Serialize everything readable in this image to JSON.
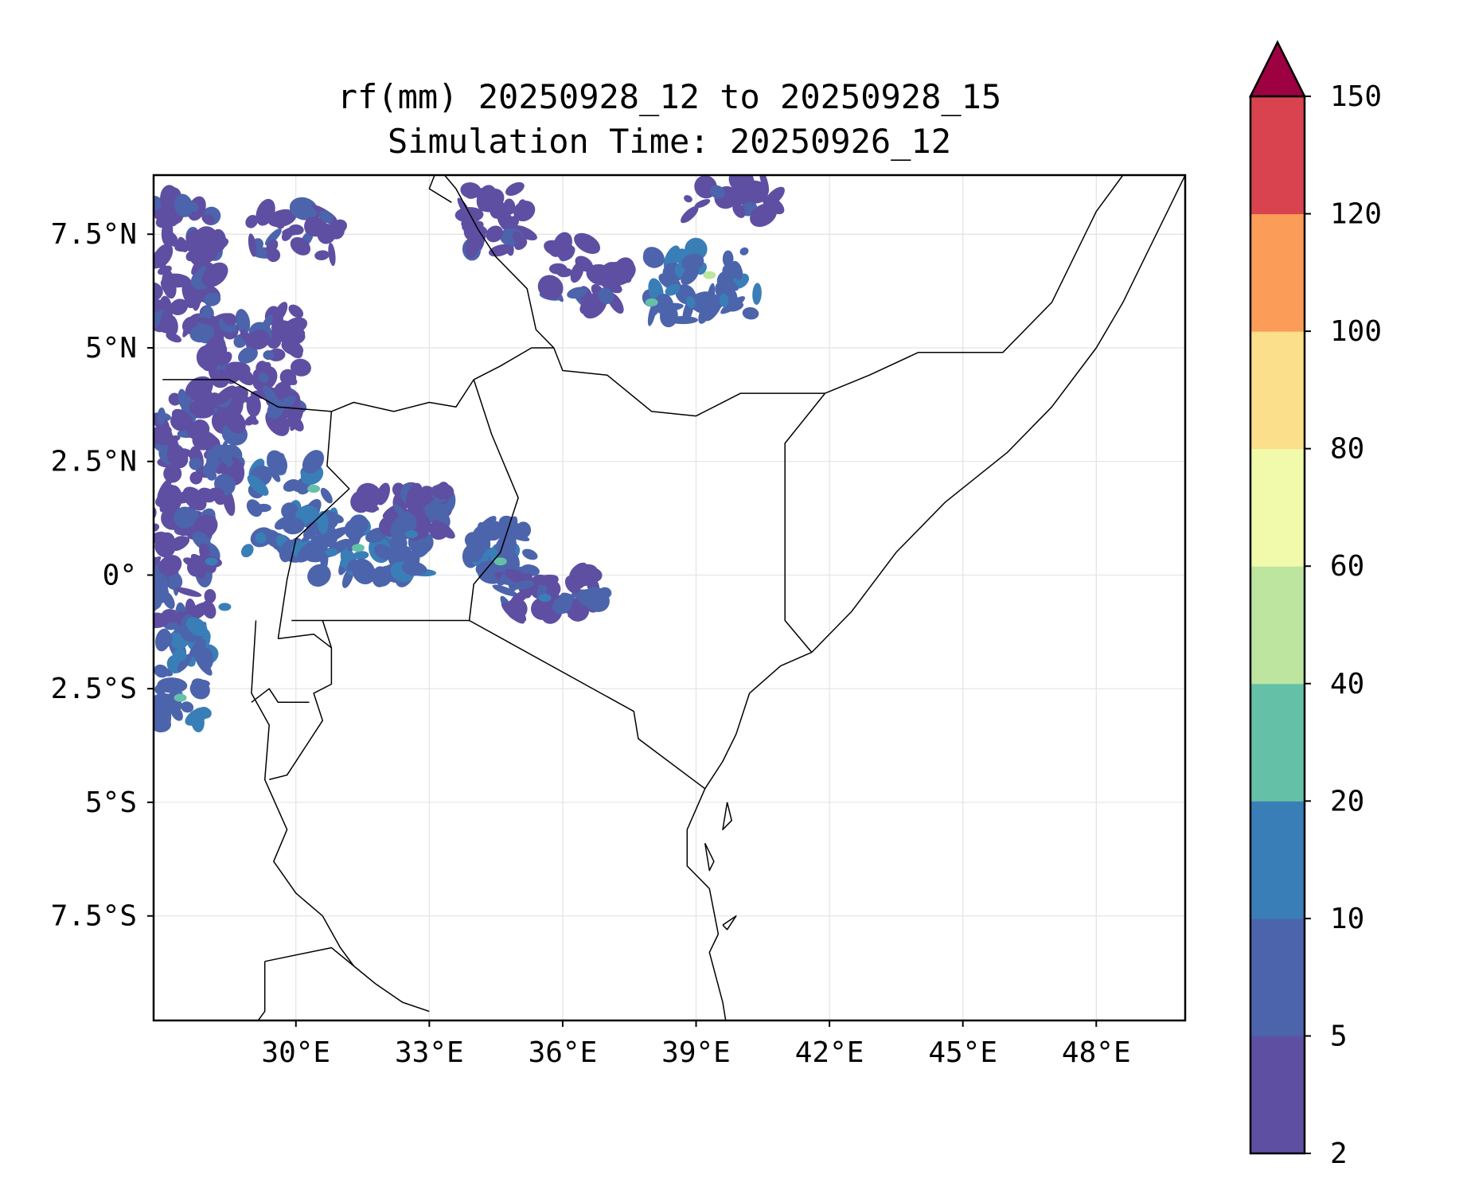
{
  "chart_data": {
    "type": "heatmap",
    "title": {
      "line1": "rf(mm) 20250928_12 to 20250928_15",
      "line2": "Simulation Time: 20250926_12"
    },
    "x_extent": [
      26.8,
      50.0
    ],
    "y_extent": [
      -9.8,
      8.8
    ],
    "x_ticks": [
      {
        "value": 30,
        "label": "30°E"
      },
      {
        "value": 33,
        "label": "33°E"
      },
      {
        "value": 36,
        "label": "36°E"
      },
      {
        "value": 39,
        "label": "39°E"
      },
      {
        "value": 42,
        "label": "42°E"
      },
      {
        "value": 45,
        "label": "45°E"
      },
      {
        "value": 48,
        "label": "48°E"
      }
    ],
    "y_ticks": [
      {
        "value": 7.5,
        "label": "7.5°N"
      },
      {
        "value": 5,
        "label": "5°N"
      },
      {
        "value": 2.5,
        "label": "2.5°N"
      },
      {
        "value": 0,
        "label": "0°"
      },
      {
        "value": -2.5,
        "label": "2.5°S"
      },
      {
        "value": -5,
        "label": "5°S"
      },
      {
        "value": -7.5,
        "label": "7.5°S"
      }
    ],
    "colorbar": {
      "extend": "max",
      "extend_color": "#9e0142",
      "levels": [
        {
          "label": "2"
        },
        {
          "label": "5"
        },
        {
          "label": "10"
        },
        {
          "label": "20"
        },
        {
          "label": "40"
        },
        {
          "label": "60"
        },
        {
          "label": "80"
        },
        {
          "label": "100"
        },
        {
          "label": "120"
        },
        {
          "label": "150"
        }
      ],
      "bins": [
        {
          "from": 2,
          "to": 5,
          "color": "#5e4fa2"
        },
        {
          "from": 5,
          "to": 10,
          "color": "#4c64ab"
        },
        {
          "from": 10,
          "to": 20,
          "color": "#3a7eb8"
        },
        {
          "from": 20,
          "to": 40,
          "color": "#65c0a8"
        },
        {
          "from": 40,
          "to": 60,
          "color": "#bde5a0"
        },
        {
          "from": 60,
          "to": 80,
          "color": "#f1f9aa"
        },
        {
          "from": 80,
          "to": 100,
          "color": "#fcdf8b"
        },
        {
          "from": 100,
          "to": 120,
          "color": "#fb9c58"
        },
        {
          "from": 120,
          "to": 150,
          "color": "#d8434f"
        }
      ]
    },
    "rain_clusters": [
      {
        "lon": 27.5,
        "lat": 6.8,
        "w": 1.6,
        "h": 3.2,
        "bin": 0,
        "n": 70
      },
      {
        "lon": 29.0,
        "lat": 4.6,
        "w": 2.4,
        "h": 2.6,
        "bin": 0,
        "n": 80
      },
      {
        "lon": 27.8,
        "lat": 2.8,
        "w": 1.8,
        "h": 2.4,
        "bin": 0,
        "n": 70
      },
      {
        "lon": 29.8,
        "lat": 1.6,
        "w": 1.8,
        "h": 2.2,
        "bin": 1,
        "n": 45
      },
      {
        "lon": 27.4,
        "lat": 0.2,
        "w": 1.4,
        "h": 2.4,
        "bin": 0,
        "n": 60
      },
      {
        "lon": 27.5,
        "lat": -2.2,
        "w": 1.2,
        "h": 2.2,
        "bin": 1,
        "n": 40
      },
      {
        "lon": 31.6,
        "lat": 0.6,
        "w": 2.6,
        "h": 1.4,
        "bin": 1,
        "n": 55
      },
      {
        "lon": 32.4,
        "lat": 1.4,
        "w": 2.0,
        "h": 1.0,
        "bin": 0,
        "n": 40
      },
      {
        "lon": 34.6,
        "lat": 0.5,
        "w": 1.4,
        "h": 1.2,
        "bin": 1,
        "n": 35
      },
      {
        "lon": 35.6,
        "lat": -0.5,
        "w": 1.8,
        "h": 1.0,
        "bin": 0,
        "n": 35
      },
      {
        "lon": 36.6,
        "lat": -0.3,
        "w": 0.8,
        "h": 0.8,
        "bin": 0,
        "n": 12
      },
      {
        "lon": 34.5,
        "lat": 7.8,
        "w": 1.4,
        "h": 1.4,
        "bin": 0,
        "n": 30
      },
      {
        "lon": 36.5,
        "lat": 6.6,
        "w": 1.8,
        "h": 1.4,
        "bin": 0,
        "n": 30
      },
      {
        "lon": 39.2,
        "lat": 6.4,
        "w": 2.6,
        "h": 1.6,
        "bin": 1,
        "n": 45
      },
      {
        "lon": 39.8,
        "lat": 8.3,
        "w": 2.0,
        "h": 0.8,
        "bin": 0,
        "n": 18
      },
      {
        "lon": 30.0,
        "lat": 7.6,
        "w": 2.0,
        "h": 1.2,
        "bin": 0,
        "n": 30
      }
    ],
    "rain_cores": [
      {
        "lon": 28.1,
        "lat": 0.3,
        "bin": 2
      },
      {
        "lon": 27.4,
        "lat": -2.7,
        "bin": 3
      },
      {
        "lon": 30.4,
        "lat": 1.9,
        "bin": 3
      },
      {
        "lon": 31.4,
        "lat": 0.6,
        "bin": 3
      },
      {
        "lon": 30.8,
        "lat": 0.5,
        "bin": 2
      },
      {
        "lon": 34.6,
        "lat": 0.3,
        "bin": 3
      },
      {
        "lon": 34.4,
        "lat": 0.5,
        "bin": 2
      },
      {
        "lon": 35.6,
        "lat": -0.5,
        "bin": 2
      },
      {
        "lon": 39.3,
        "lat": 6.6,
        "bin": 4
      },
      {
        "lon": 38.0,
        "lat": 6.0,
        "bin": 3
      },
      {
        "lon": 28.4,
        "lat": -0.7,
        "bin": 2
      },
      {
        "lon": 27.4,
        "lat": -1.8,
        "bin": 2
      },
      {
        "lon": 32.6,
        "lat": 0.9,
        "bin": 2
      }
    ],
    "borders": [
      [
        [
          27.0,
          4.3
        ],
        [
          28.5,
          4.3
        ],
        [
          29.6,
          3.7
        ],
        [
          30.8,
          3.6
        ],
        [
          31.3,
          3.8
        ],
        [
          32.2,
          3.6
        ],
        [
          33.0,
          3.8
        ],
        [
          33.6,
          3.7
        ],
        [
          34.0,
          4.3
        ],
        [
          34.6,
          4.6
        ],
        [
          35.3,
          5.0
        ],
        [
          35.8,
          5.0
        ],
        [
          36.0,
          4.5
        ],
        [
          37.0,
          4.4
        ],
        [
          38.0,
          3.6
        ],
        [
          39.0,
          3.5
        ],
        [
          40.0,
          4.0
        ],
        [
          40.9,
          4.0
        ],
        [
          41.9,
          4.0
        ]
      ],
      [
        [
          41.9,
          4.0
        ],
        [
          42.9,
          4.4
        ],
        [
          44.0,
          4.9
        ],
        [
          45.9,
          4.9
        ],
        [
          47.0,
          6.0
        ],
        [
          48.0,
          8.0
        ],
        [
          48.6,
          8.8
        ]
      ],
      [
        [
          41.9,
          4.0
        ],
        [
          41.0,
          2.9
        ],
        [
          41.0,
          -1.0
        ],
        [
          41.6,
          -1.7
        ]
      ],
      [
        [
          34.0,
          4.3
        ],
        [
          34.4,
          3.1
        ],
        [
          35.0,
          1.7
        ],
        [
          34.6,
          0.5
        ],
        [
          34.0,
          -0.2
        ],
        [
          33.9,
          -1.0
        ]
      ],
      [
        [
          30.8,
          3.6
        ],
        [
          30.7,
          2.4
        ],
        [
          31.2,
          1.9
        ],
        [
          30.0,
          0.8
        ],
        [
          29.8,
          -0.1
        ],
        [
          29.6,
          -1.4
        ]
      ],
      [
        [
          29.9,
          -1.0
        ],
        [
          33.9,
          -1.0
        ],
        [
          37.6,
          -3.0
        ],
        [
          37.7,
          -3.6
        ],
        [
          39.2,
          -4.7
        ]
      ],
      [
        [
          29.6,
          -1.4
        ],
        [
          30.4,
          -1.3
        ],
        [
          30.8,
          -1.6
        ],
        [
          30.8,
          -2.4
        ],
        [
          30.4,
          -2.6
        ],
        [
          30.6,
          -3.2
        ],
        [
          29.8,
          -4.4
        ],
        [
          29.4,
          -4.5
        ]
      ],
      [
        [
          30.8,
          -1.6
        ],
        [
          30.6,
          -1.0
        ]
      ],
      [
        [
          29.0,
          -2.8
        ],
        [
          29.4,
          -2.5
        ],
        [
          29.6,
          -2.8
        ],
        [
          30.3,
          -2.8
        ]
      ],
      [
        [
          29.3,
          -8.5
        ],
        [
          30.8,
          -8.2
        ],
        [
          31.3,
          -8.6
        ],
        [
          31.8,
          -9.0
        ],
        [
          32.4,
          -9.4
        ],
        [
          33.0,
          -9.6
        ]
      ],
      [
        [
          29.0,
          -10.0
        ],
        [
          29.3,
          -9.6
        ],
        [
          29.3,
          -8.5
        ]
      ],
      [
        [
          29.1,
          -1.0
        ],
        [
          29.0,
          -2.6
        ],
        [
          29.4,
          -3.3
        ],
        [
          29.3,
          -4.5
        ],
        [
          29.8,
          -5.6
        ],
        [
          29.5,
          -6.3
        ],
        [
          30.0,
          -7.0
        ],
        [
          30.6,
          -7.5
        ],
        [
          31.0,
          -8.2
        ],
        [
          31.3,
          -8.6
        ]
      ],
      [
        [
          33.3,
          10.0
        ],
        [
          33.0,
          9.2
        ],
        [
          33.6,
          8.5
        ],
        [
          34.1,
          7.6
        ],
        [
          34.5,
          7.0
        ],
        [
          35.2,
          6.3
        ],
        [
          35.4,
          5.4
        ],
        [
          35.8,
          5.0
        ]
      ],
      [
        [
          33.6,
          10.0
        ],
        [
          33.0,
          8.5
        ],
        [
          33.5,
          8.2
        ]
      ]
    ],
    "coasts": [
      [
        [
          39.2,
          -4.7
        ],
        [
          39.6,
          -4.1
        ],
        [
          39.9,
          -3.5
        ],
        [
          40.2,
          -2.6
        ],
        [
          40.9,
          -2.0
        ],
        [
          41.6,
          -1.7
        ],
        [
          42.5,
          -0.8
        ],
        [
          43.5,
          0.5
        ],
        [
          44.6,
          1.6
        ],
        [
          46.0,
          2.7
        ],
        [
          47.0,
          3.7
        ],
        [
          48.0,
          5.0
        ],
        [
          48.6,
          6.0
        ],
        [
          49.0,
          6.8
        ],
        [
          49.6,
          8.0
        ],
        [
          50.0,
          8.8
        ]
      ],
      [
        [
          39.2,
          -4.7
        ],
        [
          38.8,
          -5.6
        ],
        [
          38.8,
          -6.4
        ],
        [
          39.3,
          -6.9
        ],
        [
          39.5,
          -7.9
        ],
        [
          39.3,
          -8.3
        ],
        [
          39.6,
          -9.4
        ],
        [
          39.7,
          -10.0
        ]
      ],
      [
        [
          39.7,
          -5.0
        ],
        [
          39.8,
          -5.4
        ],
        [
          39.6,
          -5.6
        ],
        [
          39.7,
          -5.0
        ]
      ],
      [
        [
          39.2,
          -5.9
        ],
        [
          39.4,
          -6.3
        ],
        [
          39.3,
          -6.5
        ],
        [
          39.2,
          -5.9
        ]
      ],
      [
        [
          39.6,
          -7.7
        ],
        [
          39.9,
          -7.5
        ],
        [
          39.7,
          -7.8
        ],
        [
          39.6,
          -7.7
        ]
      ]
    ]
  }
}
